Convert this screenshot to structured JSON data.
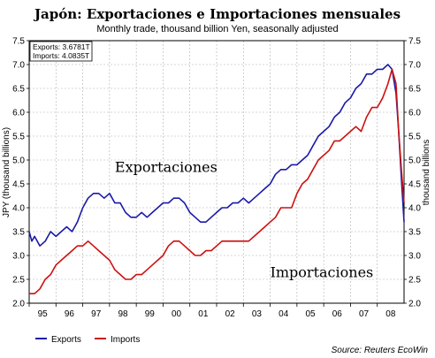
{
  "chart_data": {
    "type": "line",
    "title": "Japón: Exportaciones e Importaciones mensuales",
    "subtitle": "Monthly trade, thousand billion Yen, seasonally adjusted",
    "ylabel_left": "JPY (thousand billions)",
    "ylabel_right": "thousand billions",
    "ylim": [
      2.0,
      7.5
    ],
    "yticks": [
      "2.0",
      "2.5",
      "3.0",
      "3.5",
      "4.0",
      "4.5",
      "5.0",
      "5.5",
      "6.0",
      "6.5",
      "7.0",
      "7.5"
    ],
    "xlim": [
      1995.0,
      2009.0
    ],
    "xtick_labels": [
      "95",
      "96",
      "97",
      "98",
      "99",
      "00",
      "01",
      "02",
      "03",
      "04",
      "05",
      "06",
      "07",
      "08"
    ],
    "grid": true,
    "series": [
      {
        "name": "Exports",
        "color": "#1a1aa8",
        "points": [
          [
            1995.0,
            3.5
          ],
          [
            1995.1,
            3.3
          ],
          [
            1995.2,
            3.4
          ],
          [
            1995.4,
            3.2
          ],
          [
            1995.6,
            3.3
          ],
          [
            1995.8,
            3.5
          ],
          [
            1996.0,
            3.4
          ],
          [
            1996.2,
            3.5
          ],
          [
            1996.4,
            3.6
          ],
          [
            1996.6,
            3.5
          ],
          [
            1996.8,
            3.7
          ],
          [
            1997.0,
            4.0
          ],
          [
            1997.2,
            4.2
          ],
          [
            1997.4,
            4.3
          ],
          [
            1997.6,
            4.3
          ],
          [
            1997.8,
            4.2
          ],
          [
            1998.0,
            4.3
          ],
          [
            1998.2,
            4.1
          ],
          [
            1998.4,
            4.1
          ],
          [
            1998.6,
            3.9
          ],
          [
            1998.8,
            3.8
          ],
          [
            1999.0,
            3.8
          ],
          [
            1999.2,
            3.9
          ],
          [
            1999.4,
            3.8
          ],
          [
            1999.6,
            3.9
          ],
          [
            1999.8,
            4.0
          ],
          [
            2000.0,
            4.1
          ],
          [
            2000.2,
            4.1
          ],
          [
            2000.4,
            4.2
          ],
          [
            2000.6,
            4.2
          ],
          [
            2000.8,
            4.1
          ],
          [
            2001.0,
            3.9
          ],
          [
            2001.2,
            3.8
          ],
          [
            2001.4,
            3.7
          ],
          [
            2001.6,
            3.7
          ],
          [
            2001.8,
            3.8
          ],
          [
            2002.0,
            3.9
          ],
          [
            2002.2,
            4.0
          ],
          [
            2002.4,
            4.0
          ],
          [
            2002.6,
            4.1
          ],
          [
            2002.8,
            4.1
          ],
          [
            2003.0,
            4.2
          ],
          [
            2003.2,
            4.1
          ],
          [
            2003.4,
            4.2
          ],
          [
            2003.6,
            4.3
          ],
          [
            2003.8,
            4.4
          ],
          [
            2004.0,
            4.5
          ],
          [
            2004.2,
            4.7
          ],
          [
            2004.4,
            4.8
          ],
          [
            2004.6,
            4.8
          ],
          [
            2004.8,
            4.9
          ],
          [
            2005.0,
            4.9
          ],
          [
            2005.2,
            5.0
          ],
          [
            2005.4,
            5.1
          ],
          [
            2005.6,
            5.3
          ],
          [
            2005.8,
            5.5
          ],
          [
            2006.0,
            5.6
          ],
          [
            2006.2,
            5.7
          ],
          [
            2006.4,
            5.9
          ],
          [
            2006.6,
            6.0
          ],
          [
            2006.8,
            6.2
          ],
          [
            2007.0,
            6.3
          ],
          [
            2007.2,
            6.5
          ],
          [
            2007.4,
            6.6
          ],
          [
            2007.6,
            6.8
          ],
          [
            2007.8,
            6.8
          ],
          [
            2008.0,
            6.9
          ],
          [
            2008.2,
            6.9
          ],
          [
            2008.4,
            7.0
          ],
          [
            2008.55,
            6.9
          ],
          [
            2008.7,
            6.4
          ],
          [
            2008.8,
            5.6
          ],
          [
            2008.9,
            4.6
          ],
          [
            2009.0,
            3.7
          ]
        ]
      },
      {
        "name": "Imports",
        "color": "#cc1111",
        "points": [
          [
            1995.0,
            2.2
          ],
          [
            1995.2,
            2.2
          ],
          [
            1995.4,
            2.3
          ],
          [
            1995.6,
            2.5
          ],
          [
            1995.8,
            2.6
          ],
          [
            1996.0,
            2.8
          ],
          [
            1996.2,
            2.9
          ],
          [
            1996.4,
            3.0
          ],
          [
            1996.6,
            3.1
          ],
          [
            1996.8,
            3.2
          ],
          [
            1997.0,
            3.2
          ],
          [
            1997.2,
            3.3
          ],
          [
            1997.4,
            3.2
          ],
          [
            1997.6,
            3.1
          ],
          [
            1997.8,
            3.0
          ],
          [
            1998.0,
            2.9
          ],
          [
            1998.2,
            2.7
          ],
          [
            1998.4,
            2.6
          ],
          [
            1998.6,
            2.5
          ],
          [
            1998.8,
            2.5
          ],
          [
            1999.0,
            2.6
          ],
          [
            1999.2,
            2.6
          ],
          [
            1999.4,
            2.7
          ],
          [
            1999.6,
            2.8
          ],
          [
            1999.8,
            2.9
          ],
          [
            2000.0,
            3.0
          ],
          [
            2000.2,
            3.2
          ],
          [
            2000.4,
            3.3
          ],
          [
            2000.6,
            3.3
          ],
          [
            2000.8,
            3.2
          ],
          [
            2001.0,
            3.1
          ],
          [
            2001.2,
            3.0
          ],
          [
            2001.4,
            3.0
          ],
          [
            2001.6,
            3.1
          ],
          [
            2001.8,
            3.1
          ],
          [
            2002.0,
            3.2
          ],
          [
            2002.2,
            3.3
          ],
          [
            2002.4,
            3.3
          ],
          [
            2002.6,
            3.3
          ],
          [
            2002.8,
            3.3
          ],
          [
            2003.0,
            3.3
          ],
          [
            2003.2,
            3.3
          ],
          [
            2003.4,
            3.4
          ],
          [
            2003.6,
            3.5
          ],
          [
            2003.8,
            3.6
          ],
          [
            2004.0,
            3.7
          ],
          [
            2004.2,
            3.8
          ],
          [
            2004.4,
            4.0
          ],
          [
            2004.6,
            4.0
          ],
          [
            2004.8,
            4.0
          ],
          [
            2005.0,
            4.3
          ],
          [
            2005.2,
            4.5
          ],
          [
            2005.4,
            4.6
          ],
          [
            2005.6,
            4.8
          ],
          [
            2005.8,
            5.0
          ],
          [
            2006.0,
            5.1
          ],
          [
            2006.2,
            5.2
          ],
          [
            2006.4,
            5.4
          ],
          [
            2006.6,
            5.4
          ],
          [
            2006.8,
            5.5
          ],
          [
            2007.0,
            5.6
          ],
          [
            2007.2,
            5.7
          ],
          [
            2007.4,
            5.6
          ],
          [
            2007.6,
            5.9
          ],
          [
            2007.8,
            6.1
          ],
          [
            2008.0,
            6.1
          ],
          [
            2008.2,
            6.3
          ],
          [
            2008.4,
            6.6
          ],
          [
            2008.55,
            6.9
          ],
          [
            2008.7,
            6.6
          ],
          [
            2008.8,
            5.6
          ],
          [
            2008.9,
            4.8
          ],
          [
            2009.0,
            4.1
          ]
        ]
      }
    ],
    "box_lines": [
      "Exports: 3.6781T",
      "Imports: 4.0835T"
    ],
    "annotations": [
      {
        "text": "Exportaciones",
        "x": 1998.2,
        "y": 4.75
      },
      {
        "text": "Importaciones",
        "x": 2004.0,
        "y": 2.55
      }
    ],
    "legend": [
      {
        "label": "Exports",
        "color": "#1a1aa8"
      },
      {
        "label": "Imports",
        "color": "#cc1111"
      }
    ],
    "source": "Source: Reuters EcoWin"
  }
}
